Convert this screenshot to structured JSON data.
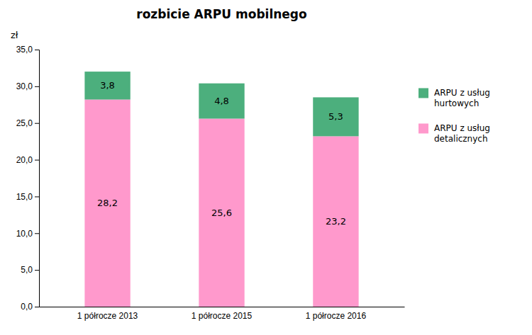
{
  "chart_data": {
    "type": "bar",
    "stacked": true,
    "title": "rozbicie ARPU mobilnego",
    "ylabel": "zł",
    "categories": [
      "1 półrocze 2013",
      "1 półrocze 2015",
      "1 półrocze 2016"
    ],
    "series": [
      {
        "name": "ARPU z usług\ndetalicznych",
        "color": "#FF99CC",
        "values": [
          28.2,
          25.6,
          23.2
        ],
        "value_labels": [
          "28,2",
          "25,6",
          "23,2"
        ]
      },
      {
        "name": "ARPU z usług\nhurtowych",
        "color": "#4CAF7D",
        "values": [
          3.8,
          4.8,
          5.3
        ],
        "value_labels": [
          "3,8",
          "4,8",
          "5,3"
        ]
      }
    ],
    "ylim": [
      0,
      35
    ],
    "yticks": [
      {
        "value": 0,
        "label": "0,0"
      },
      {
        "value": 5,
        "label": "5,0"
      },
      {
        "value": 10,
        "label": "10,0"
      },
      {
        "value": 15,
        "label": "15,0"
      },
      {
        "value": 20,
        "label": "20,0"
      },
      {
        "value": 25,
        "label": "25,0"
      },
      {
        "value": 30,
        "label": "30,0"
      },
      {
        "value": 35,
        "label": "35,0"
      }
    ],
    "data_labels": true,
    "grid": false,
    "legend": "right"
  }
}
